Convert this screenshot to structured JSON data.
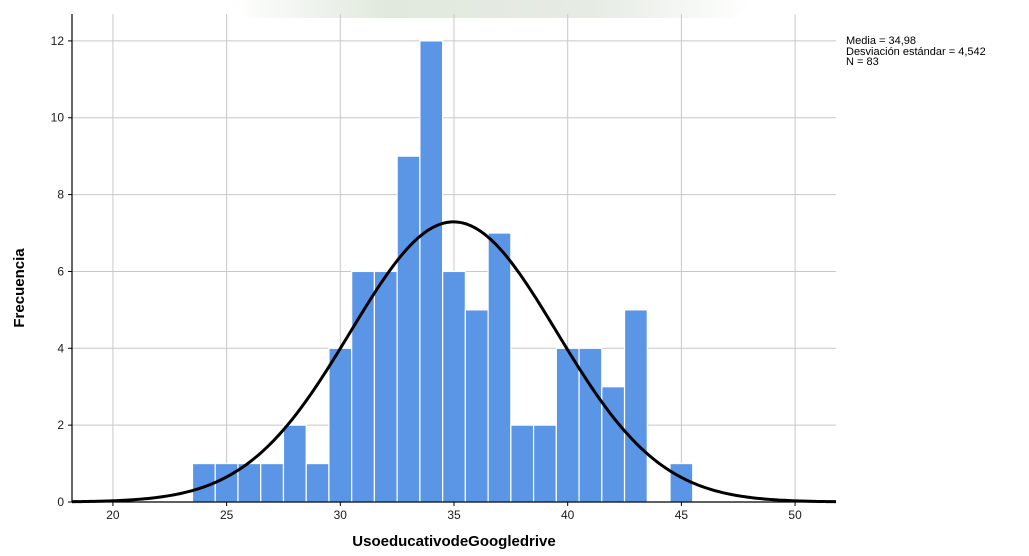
{
  "chart_data": {
    "type": "bar",
    "subtype": "histogram-with-normal-curve",
    "xlabel": "UsoeducativodeGoogledrive",
    "ylabel": "Frecuencia",
    "xlim": [
      18.2,
      51.8
    ],
    "ylim": [
      0,
      12.7
    ],
    "x_ticks": [
      20,
      25,
      30,
      35,
      40,
      45,
      50
    ],
    "y_ticks": [
      0,
      2,
      4,
      6,
      8,
      10,
      12
    ],
    "grid": true,
    "bin_width": 1,
    "bins": [
      {
        "x": 24,
        "count": 1
      },
      {
        "x": 25,
        "count": 1
      },
      {
        "x": 26,
        "count": 1
      },
      {
        "x": 27,
        "count": 1
      },
      {
        "x": 28,
        "count": 2
      },
      {
        "x": 29,
        "count": 1
      },
      {
        "x": 30,
        "count": 4
      },
      {
        "x": 31,
        "count": 6
      },
      {
        "x": 32,
        "count": 6
      },
      {
        "x": 33,
        "count": 9
      },
      {
        "x": 34,
        "count": 12
      },
      {
        "x": 35,
        "count": 6
      },
      {
        "x": 36,
        "count": 5
      },
      {
        "x": 37,
        "count": 7
      },
      {
        "x": 38,
        "count": 2
      },
      {
        "x": 39,
        "count": 2
      },
      {
        "x": 40,
        "count": 4
      },
      {
        "x": 41,
        "count": 4
      },
      {
        "x": 42,
        "count": 3
      },
      {
        "x": 43,
        "count": 5
      },
      {
        "x": 45,
        "count": 1
      }
    ],
    "normal_curve": {
      "mean": 34.98,
      "sd": 4.542,
      "n": 83
    },
    "stats_lines": [
      "Media = 34,98",
      "Desviación estándar = 4,542",
      "N = 83"
    ],
    "legend_position": "top-right",
    "colors": {
      "bar": "#5b95e6",
      "bar_edge": "#ffffff",
      "curve": "#000000",
      "grid": "#c8c8c8"
    }
  }
}
